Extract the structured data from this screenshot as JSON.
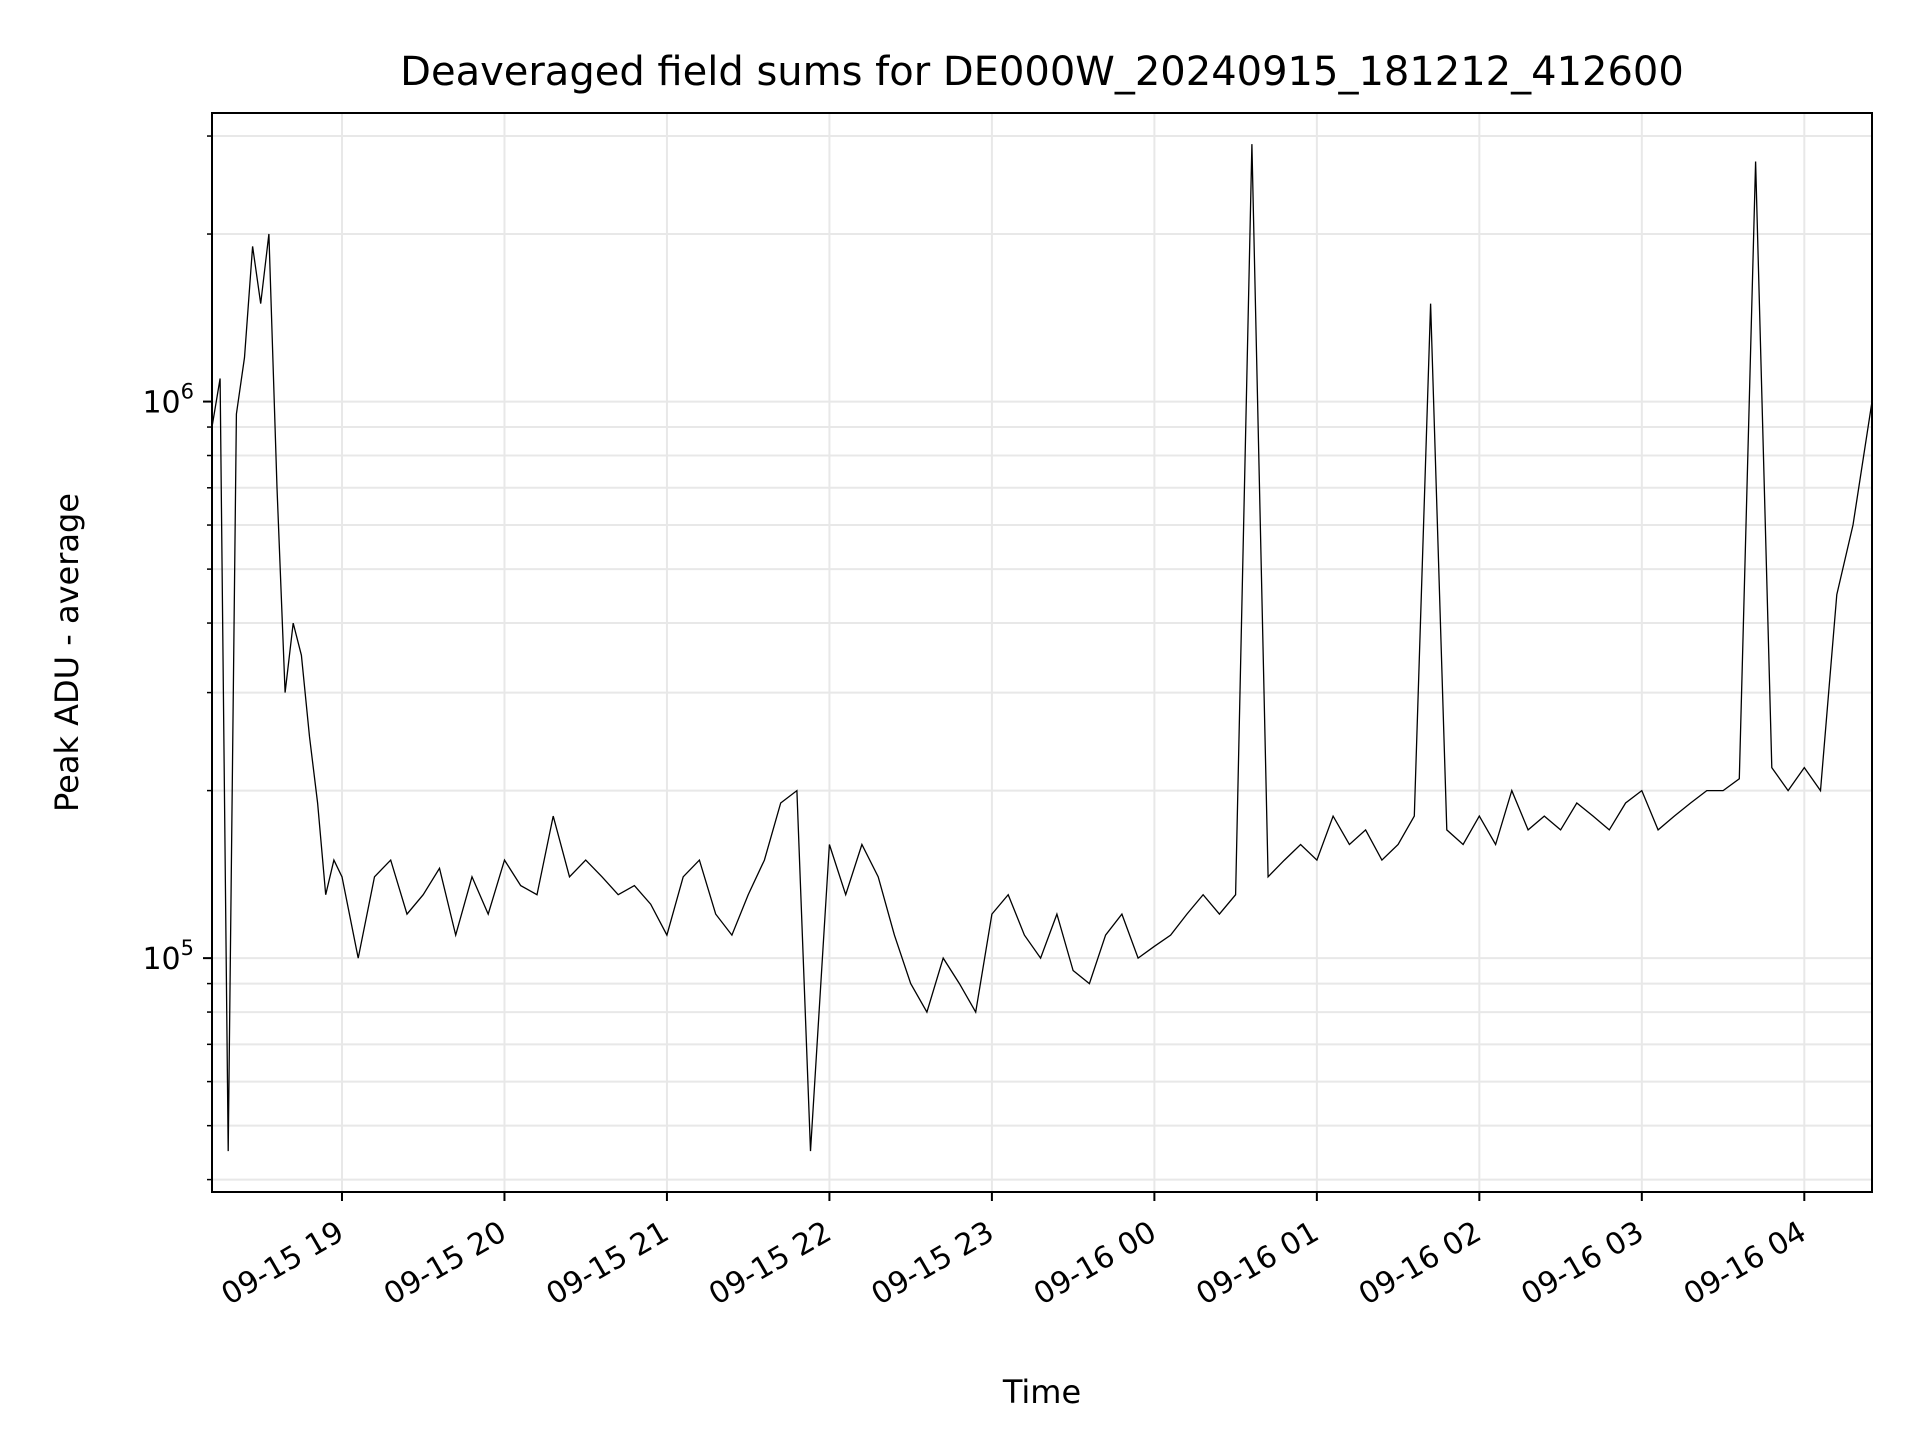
{
  "chart_data": {
    "type": "line",
    "title": "Deaveraged field sums for DE000W_20240915_181212_412600",
    "xlabel": "Time",
    "ylabel": "Peak ADU - average",
    "yscale": "log",
    "ylim": [
      38000,
      3300000
    ],
    "xlim": [
      "2024-09-15 18:12",
      "2024-09-16 04:25"
    ],
    "grid": true,
    "line_color": "#000000",
    "x_ticks": [
      {
        "label": "09-15 19",
        "t": "2024-09-15 19:00"
      },
      {
        "label": "09-15 20",
        "t": "2024-09-15 20:00"
      },
      {
        "label": "09-15 21",
        "t": "2024-09-15 21:00"
      },
      {
        "label": "09-15 22",
        "t": "2024-09-15 22:00"
      },
      {
        "label": "09-15 23",
        "t": "2024-09-15 23:00"
      },
      {
        "label": "09-16 00",
        "t": "2024-09-16 00:00"
      },
      {
        "label": "09-16 01",
        "t": "2024-09-16 01:00"
      },
      {
        "label": "09-16 02",
        "t": "2024-09-16 02:00"
      },
      {
        "label": "09-16 03",
        "t": "2024-09-16 03:00"
      },
      {
        "label": "09-16 04",
        "t": "2024-09-16 04:00"
      }
    ],
    "y_ticks": [
      {
        "base": "10",
        "exp": "5",
        "value": 100000
      },
      {
        "base": "10",
        "exp": "6",
        "value": 1000000
      }
    ],
    "series": [
      {
        "x": [
          "2024-09-15 18:12",
          "2024-09-15 18:15",
          "2024-09-15 18:18",
          "2024-09-15 18:21",
          "2024-09-15 18:24",
          "2024-09-15 18:27",
          "2024-09-15 18:30",
          "2024-09-15 18:33",
          "2024-09-15 18:36",
          "2024-09-15 18:39",
          "2024-09-15 18:42",
          "2024-09-15 18:45",
          "2024-09-15 18:48",
          "2024-09-15 18:51",
          "2024-09-15 18:54",
          "2024-09-15 18:57",
          "2024-09-15 19:00",
          "2024-09-15 19:06",
          "2024-09-15 19:12",
          "2024-09-15 19:18",
          "2024-09-15 19:24",
          "2024-09-15 19:30",
          "2024-09-15 19:36",
          "2024-09-15 19:42",
          "2024-09-15 19:48",
          "2024-09-15 19:54",
          "2024-09-15 20:00",
          "2024-09-15 20:06",
          "2024-09-15 20:12",
          "2024-09-15 20:18",
          "2024-09-15 20:24",
          "2024-09-15 20:30",
          "2024-09-15 20:36",
          "2024-09-15 20:42",
          "2024-09-15 20:48",
          "2024-09-15 20:54",
          "2024-09-15 21:00",
          "2024-09-15 21:06",
          "2024-09-15 21:12",
          "2024-09-15 21:18",
          "2024-09-15 21:24",
          "2024-09-15 21:30",
          "2024-09-15 21:36",
          "2024-09-15 21:42",
          "2024-09-15 21:48",
          "2024-09-15 21:53",
          "2024-09-15 22:00",
          "2024-09-15 22:06",
          "2024-09-15 22:12",
          "2024-09-15 22:18",
          "2024-09-15 22:24",
          "2024-09-15 22:30",
          "2024-09-15 22:36",
          "2024-09-15 22:42",
          "2024-09-15 22:48",
          "2024-09-15 22:54",
          "2024-09-15 23:00",
          "2024-09-15 23:06",
          "2024-09-15 23:12",
          "2024-09-15 23:18",
          "2024-09-15 23:24",
          "2024-09-15 23:30",
          "2024-09-15 23:36",
          "2024-09-15 23:42",
          "2024-09-15 23:48",
          "2024-09-15 23:54",
          "2024-09-16 00:00",
          "2024-09-16 00:06",
          "2024-09-16 00:12",
          "2024-09-16 00:18",
          "2024-09-16 00:24",
          "2024-09-16 00:30",
          "2024-09-16 00:36",
          "2024-09-16 00:42",
          "2024-09-16 00:48",
          "2024-09-16 00:54",
          "2024-09-16 01:00",
          "2024-09-16 01:06",
          "2024-09-16 01:12",
          "2024-09-16 01:18",
          "2024-09-16 01:24",
          "2024-09-16 01:30",
          "2024-09-16 01:36",
          "2024-09-16 01:42",
          "2024-09-16 01:48",
          "2024-09-16 01:54",
          "2024-09-16 02:00",
          "2024-09-16 02:06",
          "2024-09-16 02:12",
          "2024-09-16 02:18",
          "2024-09-16 02:24",
          "2024-09-16 02:30",
          "2024-09-16 02:36",
          "2024-09-16 02:42",
          "2024-09-16 02:48",
          "2024-09-16 02:54",
          "2024-09-16 03:00",
          "2024-09-16 03:06",
          "2024-09-16 03:12",
          "2024-09-16 03:18",
          "2024-09-16 03:24",
          "2024-09-16 03:30",
          "2024-09-16 03:36",
          "2024-09-16 03:42",
          "2024-09-16 03:48",
          "2024-09-16 03:54",
          "2024-09-16 04:00",
          "2024-09-16 04:06",
          "2024-09-16 04:12",
          "2024-09-16 04:18",
          "2024-09-16 04:25"
        ],
        "values": [
          900000,
          1100000,
          45000,
          950000,
          1200000,
          1900000,
          1500000,
          2000000,
          700000,
          300000,
          400000,
          350000,
          250000,
          190000,
          130000,
          150000,
          140000,
          100000,
          140000,
          150000,
          120000,
          130000,
          145000,
          110000,
          140000,
          120000,
          150000,
          135000,
          130000,
          180000,
          140000,
          150000,
          140000,
          130000,
          135000,
          125000,
          110000,
          140000,
          150000,
          120000,
          110000,
          130000,
          150000,
          190000,
          200000,
          45000,
          160000,
          130000,
          160000,
          140000,
          110000,
          90000,
          80000,
          100000,
          90000,
          80000,
          120000,
          130000,
          110000,
          100000,
          120000,
          95000,
          90000,
          110000,
          120000,
          100000,
          105000,
          110000,
          120000,
          130000,
          120000,
          130000,
          2900000,
          140000,
          150000,
          160000,
          150000,
          180000,
          160000,
          170000,
          150000,
          160000,
          180000,
          1500000,
          170000,
          160000,
          180000,
          160000,
          200000,
          170000,
          180000,
          170000,
          190000,
          180000,
          170000,
          190000,
          200000,
          170000,
          180000,
          190000,
          200000,
          200000,
          210000,
          2700000,
          220000,
          200000,
          220000,
          200000,
          450000,
          600000,
          1000000
        ]
      }
    ]
  }
}
